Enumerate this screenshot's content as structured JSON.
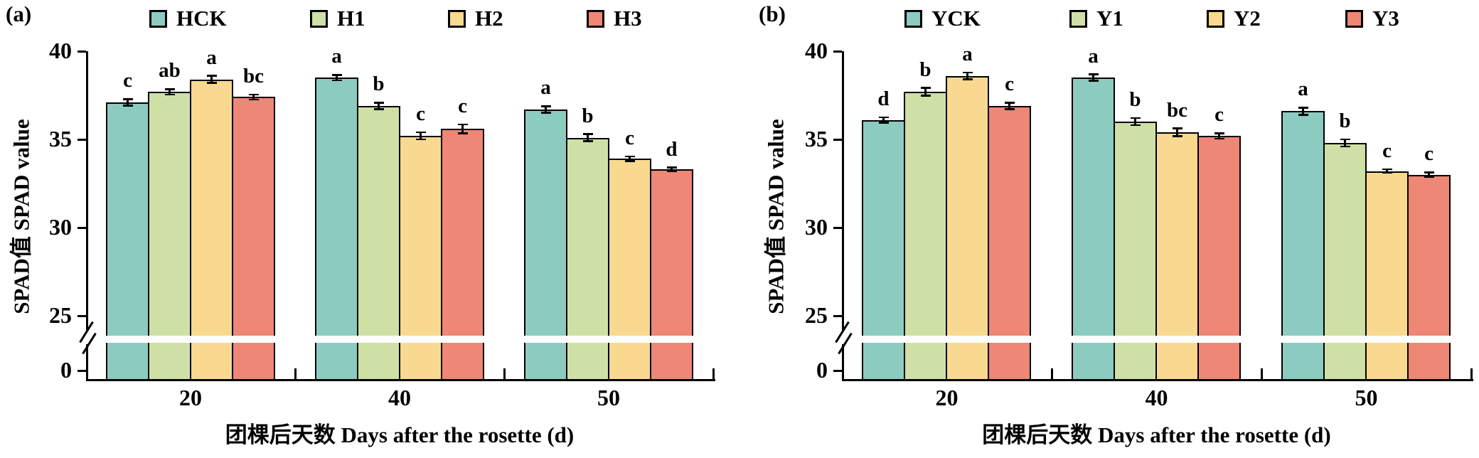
{
  "style": {
    "series_colors": [
      "#8CCCC0",
      "#CFE0A6",
      "#F9D98F",
      "#EE8776"
    ],
    "bar_border_color": "#000000",
    "background": "#FFFFFF",
    "axis_color": "#000000"
  },
  "chart_data": [
    {
      "type": "bar",
      "panel_label": "(a)",
      "xlabel": "团棵后天数 Days after the rosette (d)",
      "ylabel": "SPAD值 SPAD value",
      "categories": [
        "20",
        "40",
        "50"
      ],
      "y_ticks": [
        "40",
        "35",
        "30",
        "25",
        "0"
      ],
      "ylim": [
        0,
        40
      ],
      "y_axis_break_between": [
        0,
        25
      ],
      "grid": false,
      "legend_position": "top",
      "series": [
        {
          "name": "HCK",
          "values": [
            37.1,
            38.5,
            36.7
          ],
          "errors": [
            0.18,
            0.15,
            0.18
          ],
          "sig_letters": [
            "c",
            "a",
            "a"
          ]
        },
        {
          "name": "H1",
          "values": [
            37.7,
            36.9,
            35.1
          ],
          "errors": [
            0.15,
            0.18,
            0.2
          ],
          "sig_letters": [
            "ab",
            "b",
            "b"
          ]
        },
        {
          "name": "H2",
          "values": [
            38.4,
            35.2,
            33.9
          ],
          "errors": [
            0.2,
            0.2,
            0.13
          ],
          "sig_letters": [
            "a",
            "c",
            "c"
          ]
        },
        {
          "name": "H3",
          "values": [
            37.4,
            35.6,
            33.3
          ],
          "errors": [
            0.15,
            0.25,
            0.1
          ],
          "sig_letters": [
            "bc",
            "c",
            "d"
          ]
        }
      ]
    },
    {
      "type": "bar",
      "panel_label": "(b)",
      "xlabel": "团棵后天数 Days after the rosette (d)",
      "ylabel": "SPAD值 SPAD value",
      "categories": [
        "20",
        "40",
        "50"
      ],
      "y_ticks": [
        "40",
        "35",
        "30",
        "25",
        "0"
      ],
      "ylim": [
        0,
        40
      ],
      "y_axis_break_between": [
        0,
        25
      ],
      "grid": false,
      "legend_position": "top",
      "series": [
        {
          "name": "YCK",
          "values": [
            36.1,
            38.5,
            36.6
          ],
          "errors": [
            0.15,
            0.18,
            0.2
          ],
          "sig_letters": [
            "d",
            "a",
            "a"
          ]
        },
        {
          "name": "Y1",
          "values": [
            37.7,
            36.0,
            34.8
          ],
          "errors": [
            0.22,
            0.2,
            0.2
          ],
          "sig_letters": [
            "b",
            "b",
            "b"
          ]
        },
        {
          "name": "Y2",
          "values": [
            38.6,
            35.4,
            33.2
          ],
          "errors": [
            0.2,
            0.22,
            0.1
          ],
          "sig_letters": [
            "a",
            "bc",
            "c"
          ]
        },
        {
          "name": "Y3",
          "values": [
            36.9,
            35.2,
            33.0
          ],
          "errors": [
            0.18,
            0.15,
            0.13
          ],
          "sig_letters": [
            "c",
            "c",
            "c"
          ]
        }
      ]
    }
  ]
}
